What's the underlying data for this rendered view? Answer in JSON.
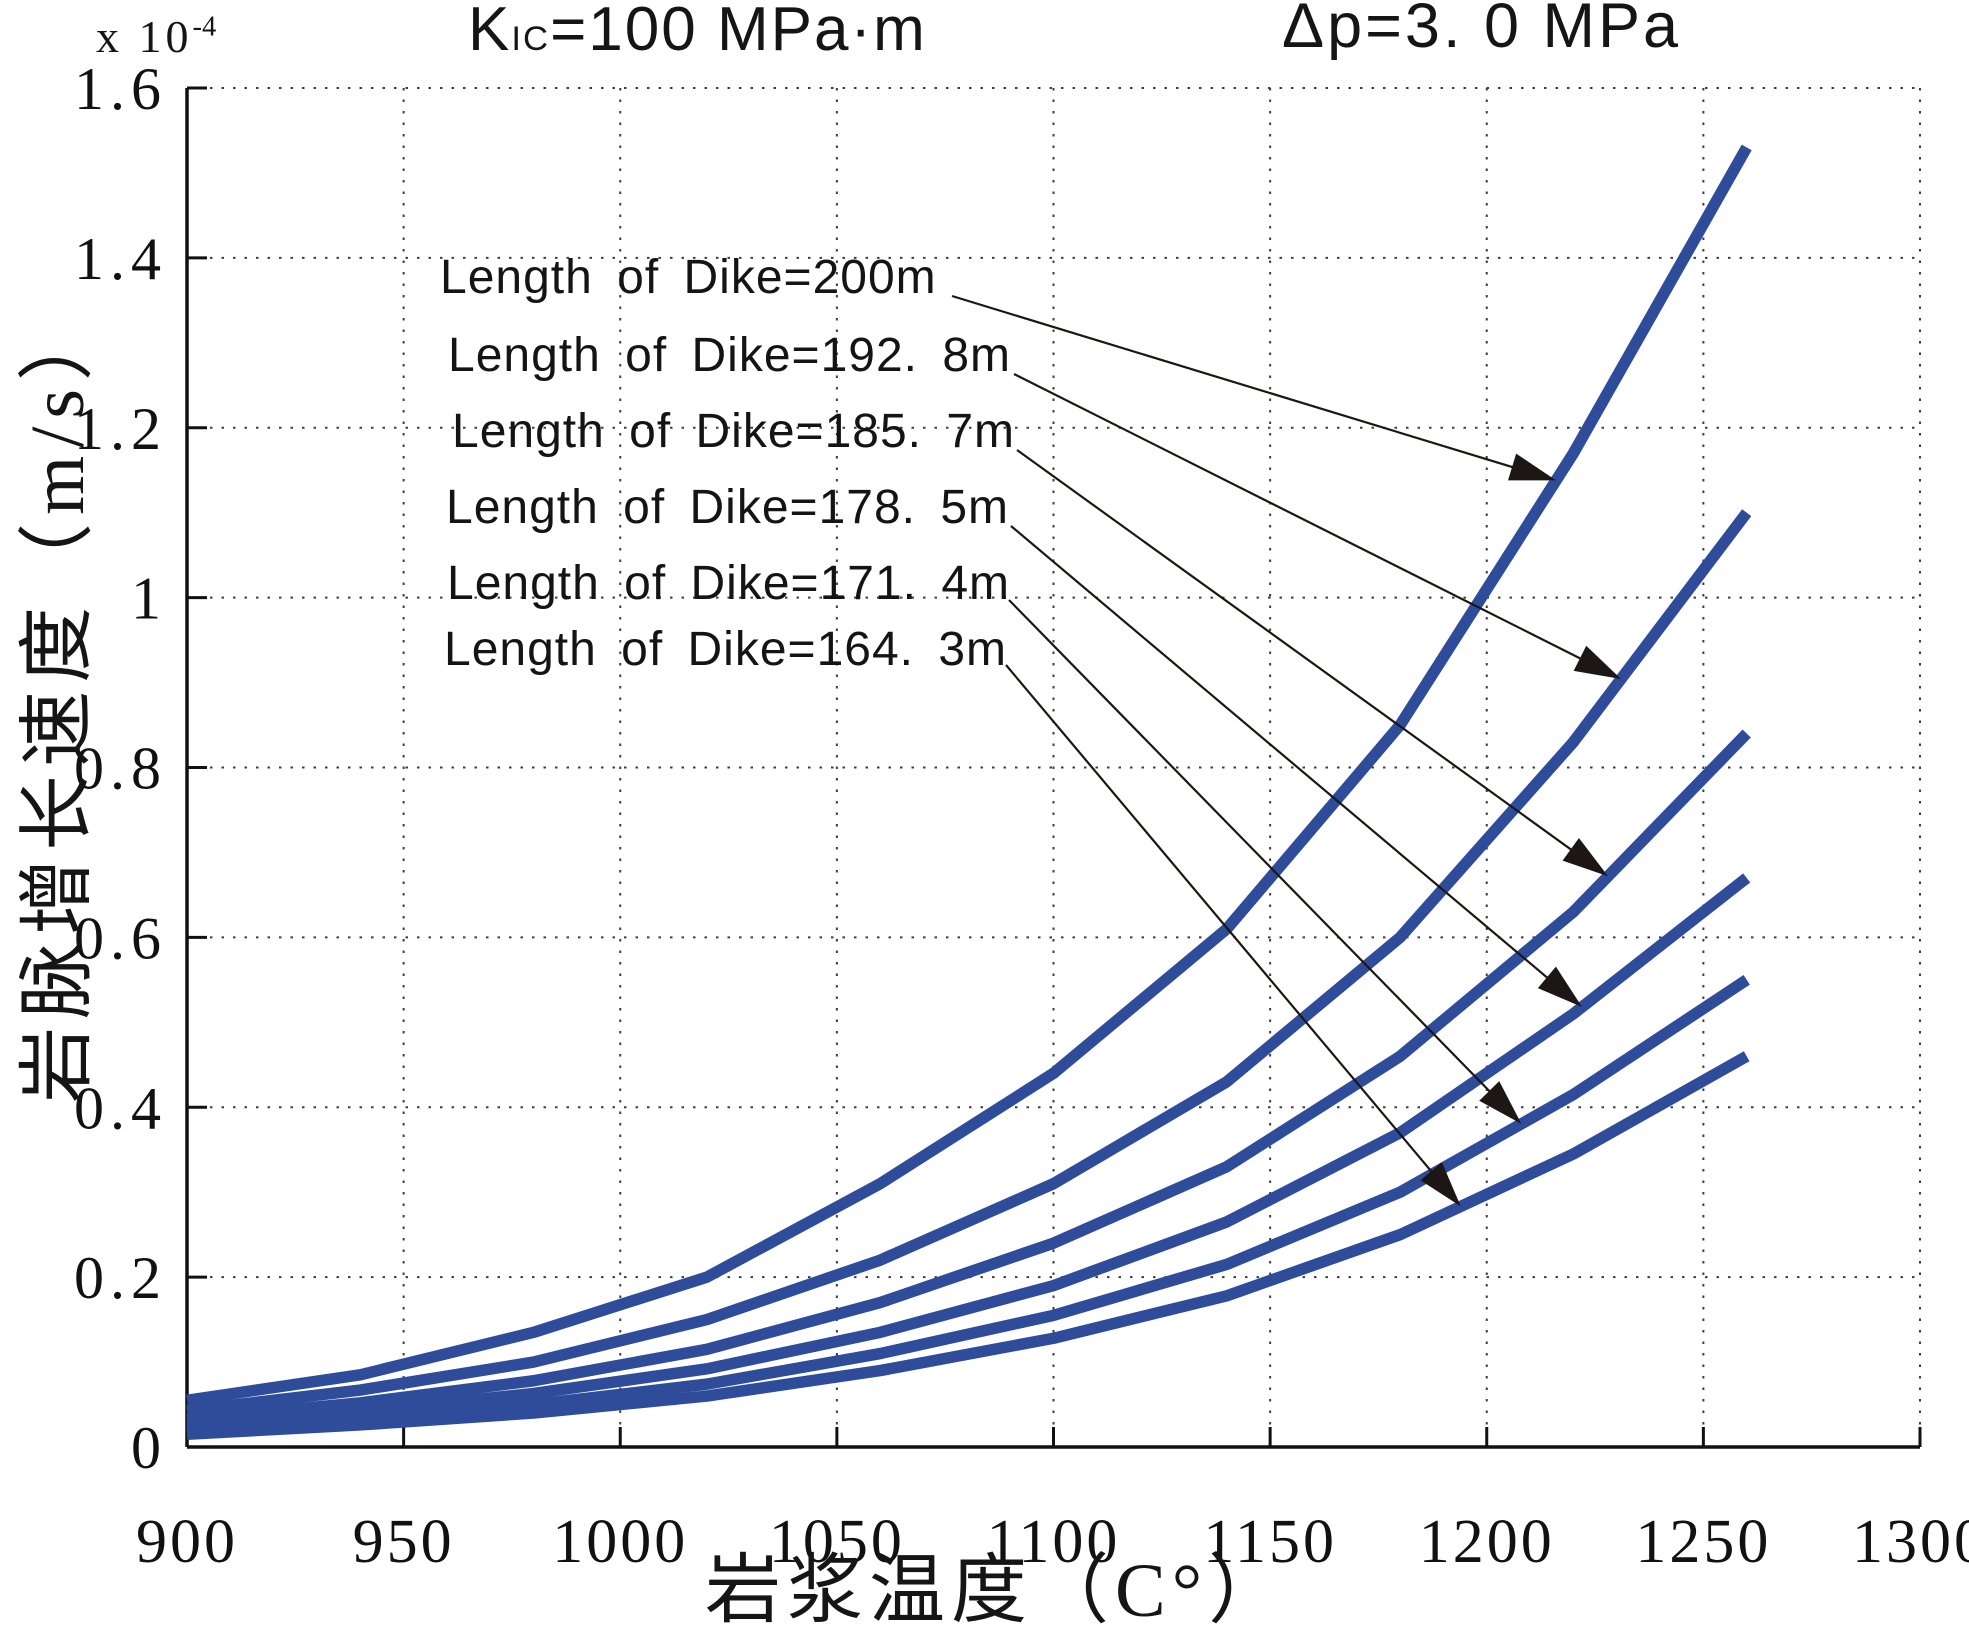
{
  "titles": {
    "left": {
      "k": "K",
      "sub": "IC",
      "rest": "=100  MPa·m"
    },
    "right": "Δp=3. 0  MPa"
  },
  "axes": {
    "y_multiplier_base": "x 10",
    "y_multiplier_exp": "-4",
    "xlabel": "岩浆温度（C°）",
    "ylabel": "岩脉增长速度（m/s）"
  },
  "chart_data": {
    "type": "line",
    "title_left": "KIC=100 MPa·m",
    "title_right": "Δp=3.0 MPa",
    "xlabel": "岩浆温度（C°）",
    "ylabel": "岩脉增长速度（m/s）",
    "y_unit_multiplier": "x 10^-4",
    "xlim": [
      900,
      1300
    ],
    "ylim_e4": [
      0,
      1.6
    ],
    "x_ticks": [
      900,
      950,
      1000,
      1050,
      1100,
      1150,
      1200,
      1250,
      1300
    ],
    "x_tick_labels": [
      "900",
      "950",
      "1000",
      "1050",
      "1100",
      "1150",
      "1200",
      "1250",
      "1300"
    ],
    "y_ticks_e4": [
      0,
      0.2,
      0.4,
      0.6,
      0.8,
      1.0,
      1.2,
      1.4,
      1.6
    ],
    "y_tick_labels": [
      "0",
      "0.2",
      "0.4",
      "0.6",
      "0.8",
      "1",
      "1.2",
      "1.4",
      "1.6"
    ],
    "grid": "dotted",
    "legend_position": "inside-upper-left",
    "line_color": "#2e4c9a",
    "x": [
      900,
      940,
      980,
      1020,
      1060,
      1100,
      1140,
      1180,
      1220,
      1260
    ],
    "series": [
      {
        "name": "Length of Dike=200m",
        "values_e4": [
          0.055,
          0.085,
          0.135,
          0.2,
          0.31,
          0.44,
          0.61,
          0.85,
          1.17,
          1.53
        ]
      },
      {
        "name": "Length of Dike=192. 8m",
        "values_e4": [
          0.043,
          0.067,
          0.1,
          0.15,
          0.22,
          0.31,
          0.43,
          0.6,
          0.83,
          1.1
        ]
      },
      {
        "name": "Length of Dike=185. 7m",
        "values_e4": [
          0.033,
          0.052,
          0.078,
          0.115,
          0.17,
          0.24,
          0.33,
          0.46,
          0.63,
          0.84
        ]
      },
      {
        "name": "Length of Dike=178. 5m",
        "values_e4": [
          0.026,
          0.042,
          0.063,
          0.092,
          0.135,
          0.19,
          0.265,
          0.37,
          0.51,
          0.67
        ]
      },
      {
        "name": "Length of Dike=171. 4m",
        "values_e4": [
          0.02,
          0.033,
          0.05,
          0.074,
          0.11,
          0.155,
          0.215,
          0.3,
          0.415,
          0.55
        ]
      },
      {
        "name": "Length of Dike=164. 3m",
        "values_e4": [
          0.015,
          0.026,
          0.04,
          0.06,
          0.09,
          0.128,
          0.178,
          0.25,
          0.345,
          0.46
        ]
      }
    ],
    "annotations": [
      {
        "label": "Length of Dike=200m",
        "series": 0,
        "target_x": 1216
      },
      {
        "label": "Length of Dike=192. 8m",
        "series": 1,
        "target_x": 1231
      },
      {
        "label": "Length of Dike=185. 7m",
        "series": 2,
        "target_x": 1228
      },
      {
        "label": "Length of Dike=178. 5m",
        "series": 3,
        "target_x": 1222
      },
      {
        "label": "Length of Dike=171. 4m",
        "series": 4,
        "target_x": 1208
      },
      {
        "label": "Length of Dike=164. 3m",
        "series": 5,
        "target_x": 1194
      }
    ]
  }
}
